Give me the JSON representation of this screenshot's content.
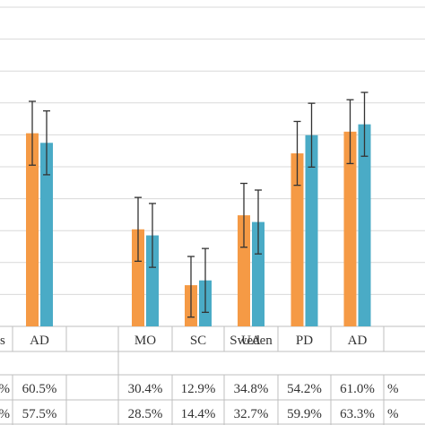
{
  "chart_data": {
    "type": "bar",
    "ylim": [
      0,
      100
    ],
    "grid": true,
    "colors": [
      "#f59a45",
      "#4aabc6"
    ],
    "categories": [
      {
        "label": "AD",
        "group": "prev"
      },
      {
        "label": "",
        "group": "prev"
      },
      {
        "label": "MO",
        "group": "Sweden"
      },
      {
        "label": "SC",
        "group": "Sweden"
      },
      {
        "label": "UA",
        "group": "Sweden"
      },
      {
        "label": "PD",
        "group": "Sweden"
      },
      {
        "label": "AD",
        "group": "Sweden"
      }
    ],
    "series": [
      {
        "values": [
          60.5,
          null,
          30.4,
          12.9,
          34.8,
          54.2,
          61.0
        ],
        "err_low": [
          10,
          null,
          10,
          10,
          10,
          10,
          10
        ],
        "err_high": [
          10,
          null,
          10,
          9,
          10,
          10,
          10
        ]
      },
      {
        "values": [
          57.5,
          null,
          28.5,
          14.4,
          32.7,
          59.9,
          63.3
        ],
        "err_low": [
          10,
          null,
          10,
          10,
          10,
          10,
          10
        ],
        "err_high": [
          10,
          null,
          10,
          10,
          10,
          10,
          10
        ]
      }
    ],
    "group_labels": [
      {
        "label": "s",
        "cols": [
          0,
          1
        ]
      },
      {
        "label": "Sweden",
        "cols": [
          2,
          6
        ]
      }
    ],
    "table_rows": [
      [
        "%",
        "60.5%",
        "",
        "30.4%",
        "12.9%",
        "34.8%",
        "54.2%",
        "61.0%",
        "%"
      ],
      [
        "%",
        "57.5%",
        "",
        "28.5%",
        "14.4%",
        "32.7%",
        "59.9%",
        "63.3%",
        "%"
      ]
    ]
  }
}
